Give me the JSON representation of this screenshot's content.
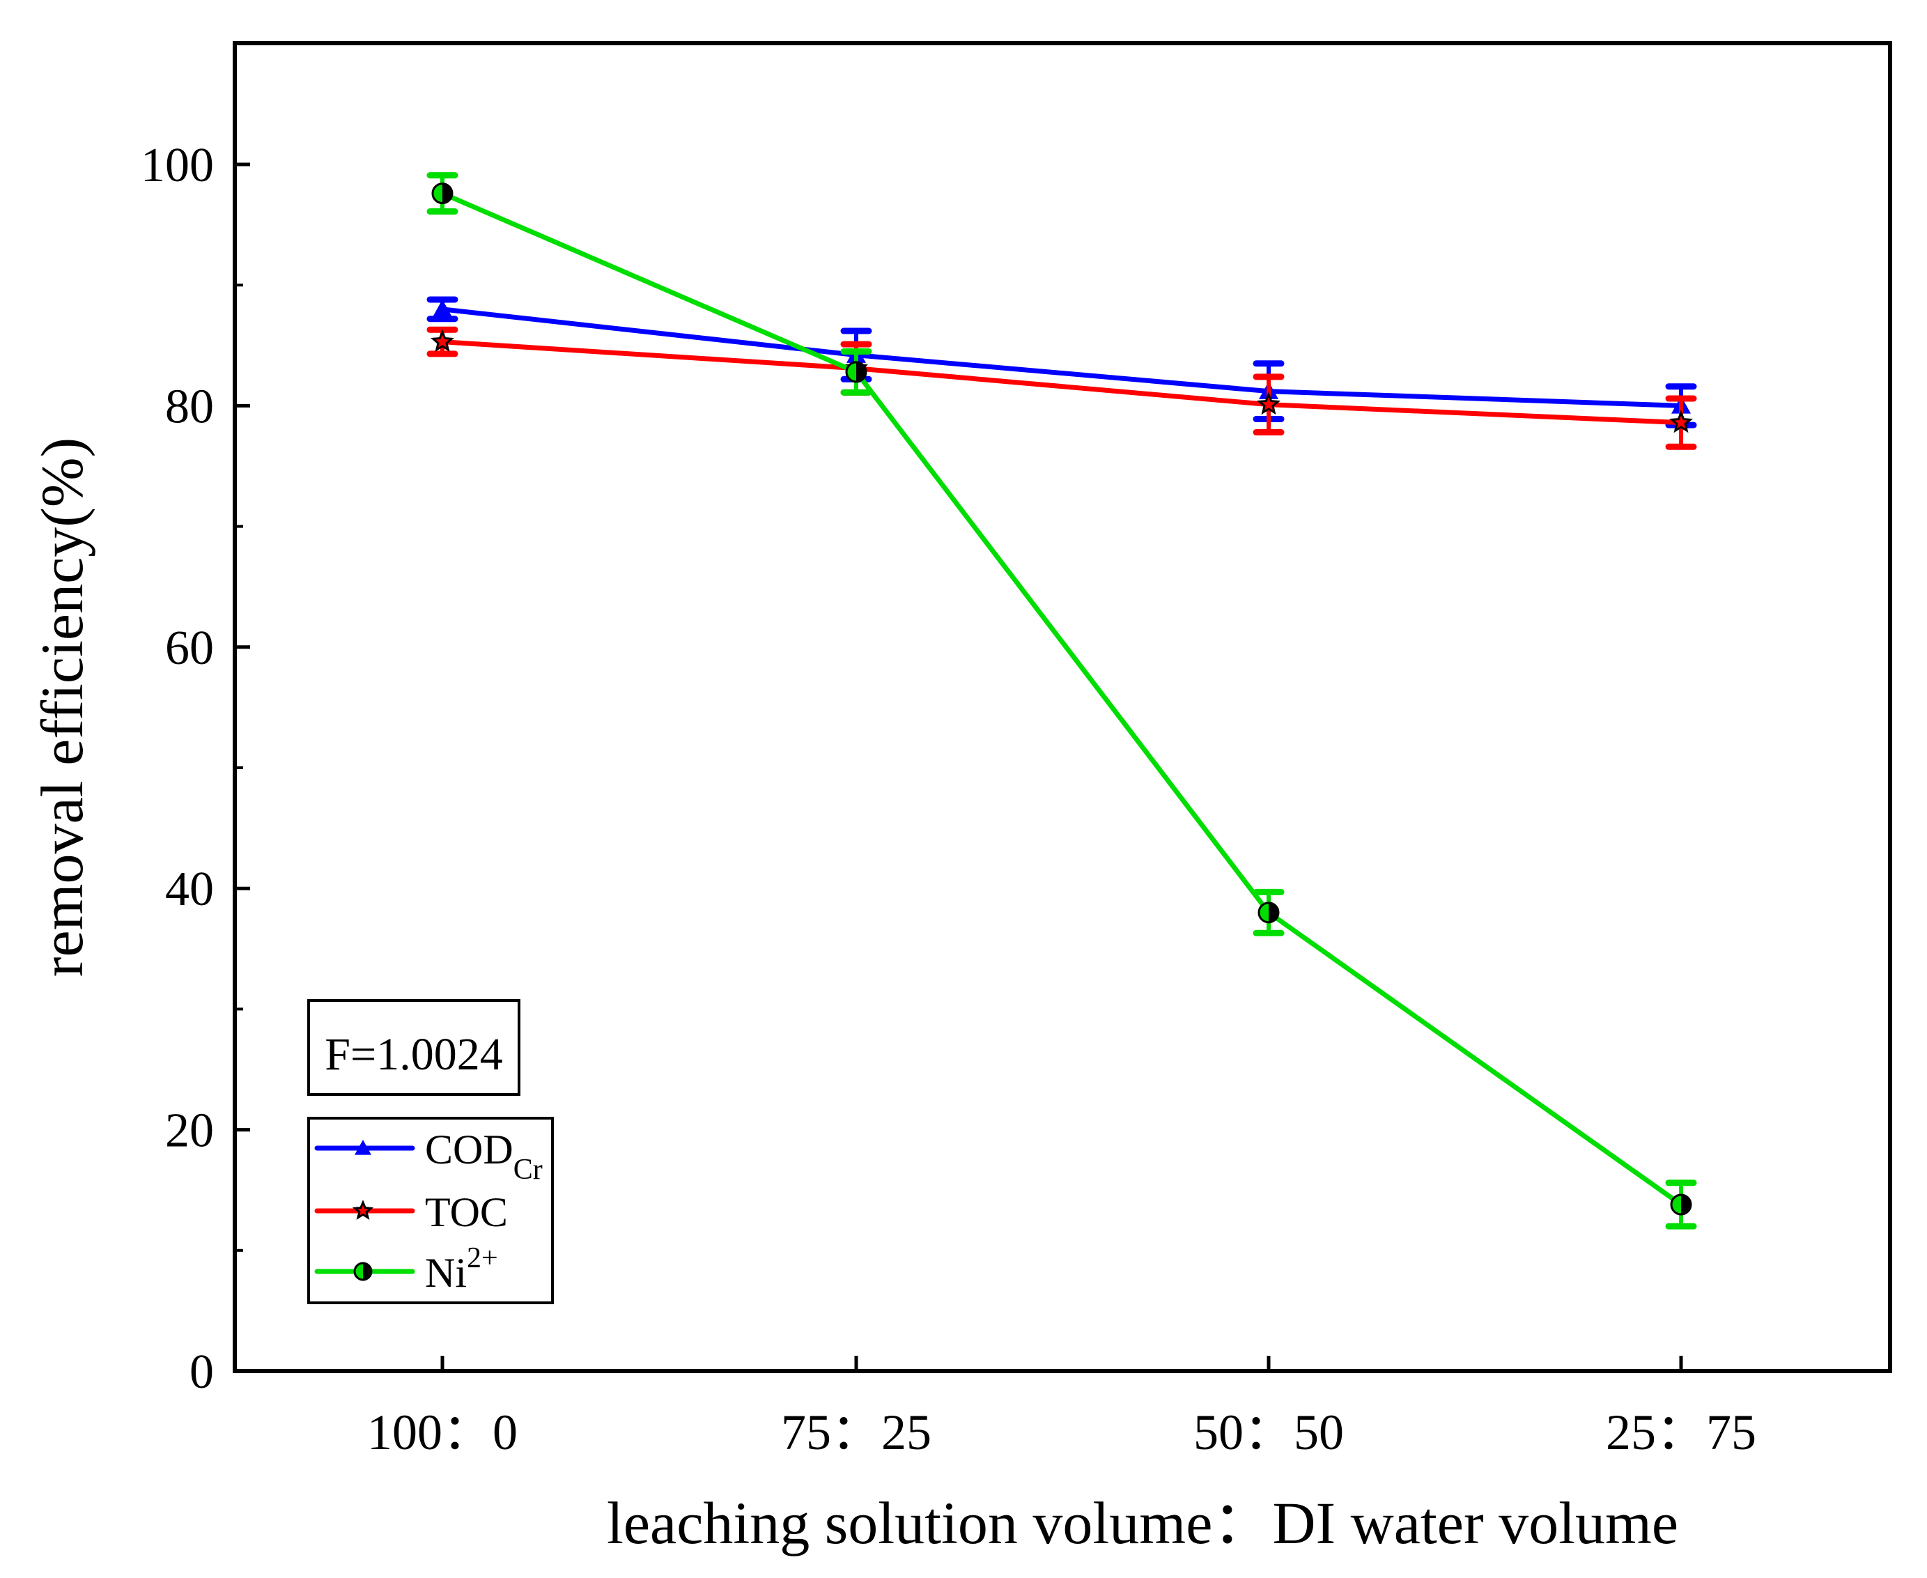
{
  "chart_data": {
    "type": "line",
    "title": "",
    "xlabel": "leaching solution volume：DI water volume",
    "ylabel": "removal efficiency(%)",
    "categories": [
      "100：0",
      "75：25",
      "50：50",
      "25：75"
    ],
    "ylim": [
      0,
      110
    ],
    "yticks": [
      0,
      20,
      40,
      60,
      80,
      100
    ],
    "yticks_minor": [
      10,
      30,
      50,
      70,
      90
    ],
    "grid": false,
    "legend_placement": "bottom-left",
    "annotation": "F=1.0024",
    "series": [
      {
        "name": "COD",
        "subscript": "Cr",
        "color": "#0000ff",
        "marker": "triangle",
        "values": [
          88.0,
          84.2,
          81.2,
          80.0
        ],
        "errors": [
          0.8,
          2.0,
          2.3,
          1.6
        ]
      },
      {
        "name": "TOC",
        "subscript": "",
        "color": "#ff0000",
        "marker": "star",
        "values": [
          85.3,
          83.1,
          80.1,
          78.6
        ],
        "errors": [
          1.0,
          2.0,
          2.3,
          2.0
        ]
      },
      {
        "name": "Ni",
        "superscript": "2+",
        "color": "#00dd00",
        "marker": "half-circle",
        "values": [
          97.6,
          82.8,
          38.0,
          13.8
        ],
        "errors": [
          1.5,
          1.7,
          1.7,
          1.8
        ]
      }
    ]
  }
}
